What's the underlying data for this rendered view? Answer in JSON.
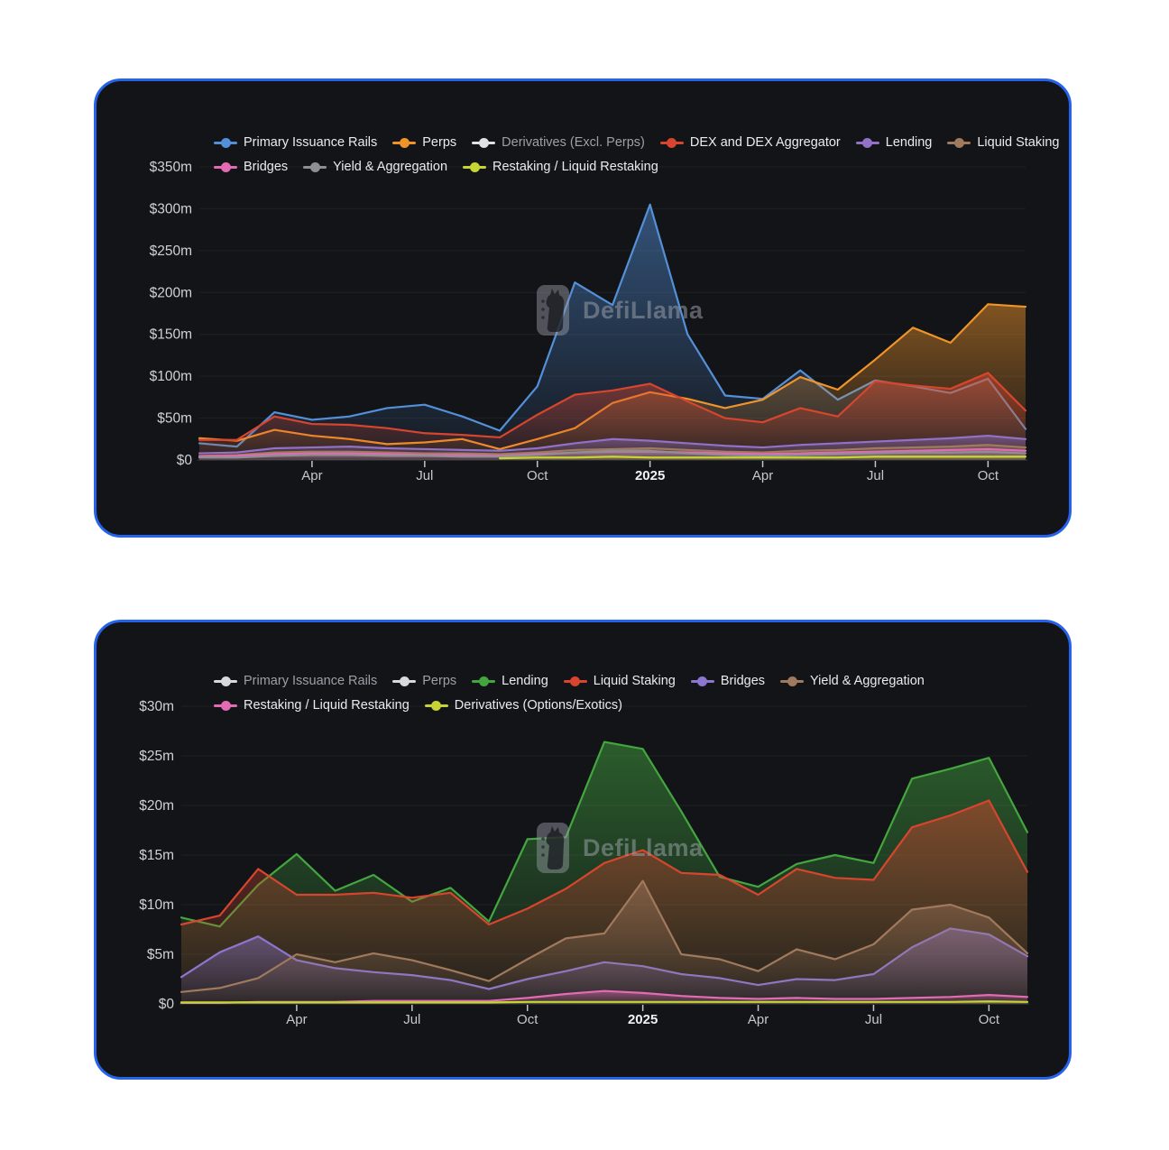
{
  "watermark_text": "DefiLlama",
  "ui": {
    "card_border_color": "#2563eb",
    "card_background": "#121418",
    "page_background": "#ffffff"
  },
  "chart_data": [
    {
      "type": "area",
      "title": "",
      "x_months": [
        "Jan 2024",
        "Feb 2024",
        "Mar 2024",
        "Apr 2024",
        "May 2024",
        "Jun 2024",
        "Jul 2024",
        "Aug 2024",
        "Sep 2024",
        "Oct 2024",
        "Nov 2024",
        "Dec 2024",
        "Jan 2025",
        "Feb 2025",
        "Mar 2025",
        "Apr 2025",
        "May 2025",
        "Jun 2025",
        "Jul 2025",
        "Aug 2025",
        "Sep 2025",
        "Oct 2025",
        "Nov 2025"
      ],
      "x_ticks": [
        {
          "index": 3,
          "label": "Apr"
        },
        {
          "index": 6,
          "label": "Jul"
        },
        {
          "index": 9,
          "label": "Oct"
        },
        {
          "index": 12,
          "label": "2025",
          "bold": true
        },
        {
          "index": 15,
          "label": "Apr"
        },
        {
          "index": 18,
          "label": "Jul"
        },
        {
          "index": 21,
          "label": "Oct"
        }
      ],
      "ylim": [
        0,
        350
      ],
      "y_ticks": [
        {
          "value": 0,
          "label": "$0"
        },
        {
          "value": 50,
          "label": "$50m"
        },
        {
          "value": 100,
          "label": "$100m"
        },
        {
          "value": 150,
          "label": "$150m"
        },
        {
          "value": 200,
          "label": "$200m"
        },
        {
          "value": 250,
          "label": "$250m"
        },
        {
          "value": 300,
          "label": "$300m"
        },
        {
          "value": 350,
          "label": "$350m"
        }
      ],
      "grid": true,
      "legend_position": "top",
      "unit": "$m (monthly revenue)",
      "series": [
        {
          "name": "Primary Issuance Rails",
          "color": "#5490d8",
          "disabled": false,
          "values": [
            20,
            16,
            57,
            48,
            52,
            62,
            66,
            52,
            35,
            88,
            212,
            185,
            305,
            150,
            77,
            73,
            107,
            72,
            95,
            88,
            80,
            97,
            37
          ]
        },
        {
          "name": "Perps",
          "color": "#f0942a",
          "disabled": false,
          "values": [
            26,
            23,
            36,
            29,
            25,
            19,
            21,
            25,
            13,
            25,
            38,
            68,
            81,
            73,
            62,
            72,
            99,
            84,
            120,
            158,
            140,
            186,
            183
          ]
        },
        {
          "name": "Derivatives (Excl. Perps)",
          "color": "#dfe1e4",
          "disabled": true,
          "values": null
        },
        {
          "name": "DEX and DEX Aggregator",
          "color": "#d8452e",
          "disabled": false,
          "values": [
            24,
            24,
            52,
            43,
            42,
            38,
            32,
            30,
            27,
            54,
            78,
            83,
            91,
            70,
            50,
            45,
            62,
            52,
            94,
            89,
            85,
            104,
            59
          ]
        },
        {
          "name": "Lending",
          "color": "#9271c7",
          "disabled": false,
          "values": [
            8,
            9,
            14,
            15,
            16,
            14,
            13,
            12,
            11,
            14,
            20,
            25,
            23,
            20,
            17,
            15,
            18,
            20,
            22,
            24,
            26,
            29,
            25
          ]
        },
        {
          "name": "Liquid Staking",
          "color": "#a1795d",
          "disabled": false,
          "values": [
            5,
            6,
            9,
            10,
            10,
            9,
            8,
            8,
            7,
            9,
            12,
            13,
            14,
            12,
            10,
            9,
            11,
            12,
            14,
            15,
            16,
            18,
            15
          ]
        },
        {
          "name": "Bridges",
          "color": "#e26cb4",
          "disabled": false,
          "values": [
            4,
            5,
            7,
            8,
            8,
            7,
            6,
            6,
            5,
            7,
            9,
            10,
            10,
            9,
            8,
            7,
            8,
            9,
            10,
            11,
            12,
            13,
            11
          ]
        },
        {
          "name": "Yield & Aggregation",
          "color": "#8d8f93",
          "disabled": false,
          "values": [
            3,
            3,
            5,
            6,
            6,
            5,
            5,
            4,
            4,
            6,
            9,
            11,
            11,
            8,
            6,
            5,
            6,
            7,
            8,
            9,
            9,
            10,
            8
          ]
        },
        {
          "name": "Restaking / Liquid Restaking",
          "color": "#c6d434",
          "disabled": false,
          "values": [
            null,
            null,
            null,
            null,
            null,
            null,
            null,
            null,
            2,
            3,
            3,
            4,
            3,
            3,
            3,
            3,
            3,
            3,
            4,
            4,
            4,
            4,
            4
          ]
        }
      ]
    },
    {
      "type": "area",
      "title": "",
      "x_months": [
        "Jan 2024",
        "Feb 2024",
        "Mar 2024",
        "Apr 2024",
        "May 2024",
        "Jun 2024",
        "Jul 2024",
        "Aug 2024",
        "Sep 2024",
        "Oct 2024",
        "Nov 2024",
        "Dec 2024",
        "Jan 2025",
        "Feb 2025",
        "Mar 2025",
        "Apr 2025",
        "May 2025",
        "Jun 2025",
        "Jul 2025",
        "Aug 2025",
        "Sep 2025",
        "Oct 2025",
        "Nov 2025"
      ],
      "x_ticks": [
        {
          "index": 3,
          "label": "Apr"
        },
        {
          "index": 6,
          "label": "Jul"
        },
        {
          "index": 9,
          "label": "Oct"
        },
        {
          "index": 12,
          "label": "2025",
          "bold": true
        },
        {
          "index": 15,
          "label": "Apr"
        },
        {
          "index": 18,
          "label": "Jul"
        },
        {
          "index": 21,
          "label": "Oct"
        }
      ],
      "ylim": [
        0,
        30
      ],
      "y_ticks": [
        {
          "value": 0,
          "label": "$0"
        },
        {
          "value": 5,
          "label": "$5m"
        },
        {
          "value": 10,
          "label": "$10m"
        },
        {
          "value": 15,
          "label": "$15m"
        },
        {
          "value": 20,
          "label": "$20m"
        },
        {
          "value": 25,
          "label": "$25m"
        },
        {
          "value": 30,
          "label": "$30m"
        }
      ],
      "grid": true,
      "legend_position": "top",
      "unit": "$m (monthly revenue)",
      "series": [
        {
          "name": "Primary Issuance Rails",
          "color": "#d7d9db",
          "disabled": true,
          "values": null
        },
        {
          "name": "Perps",
          "color": "#d7d9db",
          "disabled": true,
          "values": null
        },
        {
          "name": "Lending",
          "color": "#44a63f",
          "disabled": false,
          "values": [
            8.7,
            7.8,
            12,
            15.1,
            11.4,
            13,
            10.3,
            11.7,
            8.3,
            16.6,
            16.8,
            26.4,
            25.7,
            19.4,
            12.8,
            11.8,
            14.1,
            15,
            14.2,
            22.7,
            23.7,
            24.8,
            17.3
          ]
        },
        {
          "name": "Liquid Staking",
          "color": "#d8452e",
          "disabled": false,
          "values": [
            8,
            8.9,
            13.6,
            11,
            11,
            11.2,
            10.7,
            11.2,
            8,
            9.6,
            11.6,
            14.2,
            15.5,
            13.2,
            13,
            11,
            13.6,
            12.7,
            12.5,
            17.8,
            19,
            20.5,
            13.3
          ]
        },
        {
          "name": "Bridges",
          "color": "#8d76cf",
          "disabled": false,
          "values": [
            2.7,
            5.2,
            6.8,
            4.4,
            3.6,
            3.2,
            2.9,
            2.4,
            1.5,
            2.5,
            3.3,
            4.2,
            3.8,
            3,
            2.6,
            1.9,
            2.5,
            2.4,
            3,
            5.7,
            7.6,
            7,
            4.8
          ]
        },
        {
          "name": "Yield & Aggregation",
          "color": "#a1795d",
          "disabled": false,
          "values": [
            1.2,
            1.6,
            2.6,
            5,
            4.2,
            5.1,
            4.4,
            3.4,
            2.3,
            4.5,
            6.6,
            7.1,
            12.4,
            5,
            4.5,
            3.3,
            5.5,
            4.5,
            6,
            9.5,
            10,
            8.7,
            5.1
          ]
        },
        {
          "name": "Restaking / Liquid Restaking",
          "color": "#e26cb4",
          "disabled": false,
          "values": [
            0.1,
            0.1,
            0.2,
            0.2,
            0.2,
            0.3,
            0.3,
            0.3,
            0.3,
            0.6,
            1,
            1.3,
            1.1,
            0.8,
            0.6,
            0.5,
            0.6,
            0.5,
            0.5,
            0.6,
            0.7,
            0.9,
            0.7
          ]
        },
        {
          "name": "Derivatives (Options/Exotics)",
          "color": "#c6d434",
          "disabled": false,
          "values": [
            0.15,
            0.15,
            0.15,
            0.15,
            0.15,
            0.15,
            0.15,
            0.15,
            0.15,
            0.2,
            0.2,
            0.2,
            0.2,
            0.2,
            0.2,
            0.2,
            0.2,
            0.2,
            0.2,
            0.2,
            0.2,
            0.25,
            0.2
          ]
        }
      ]
    }
  ]
}
